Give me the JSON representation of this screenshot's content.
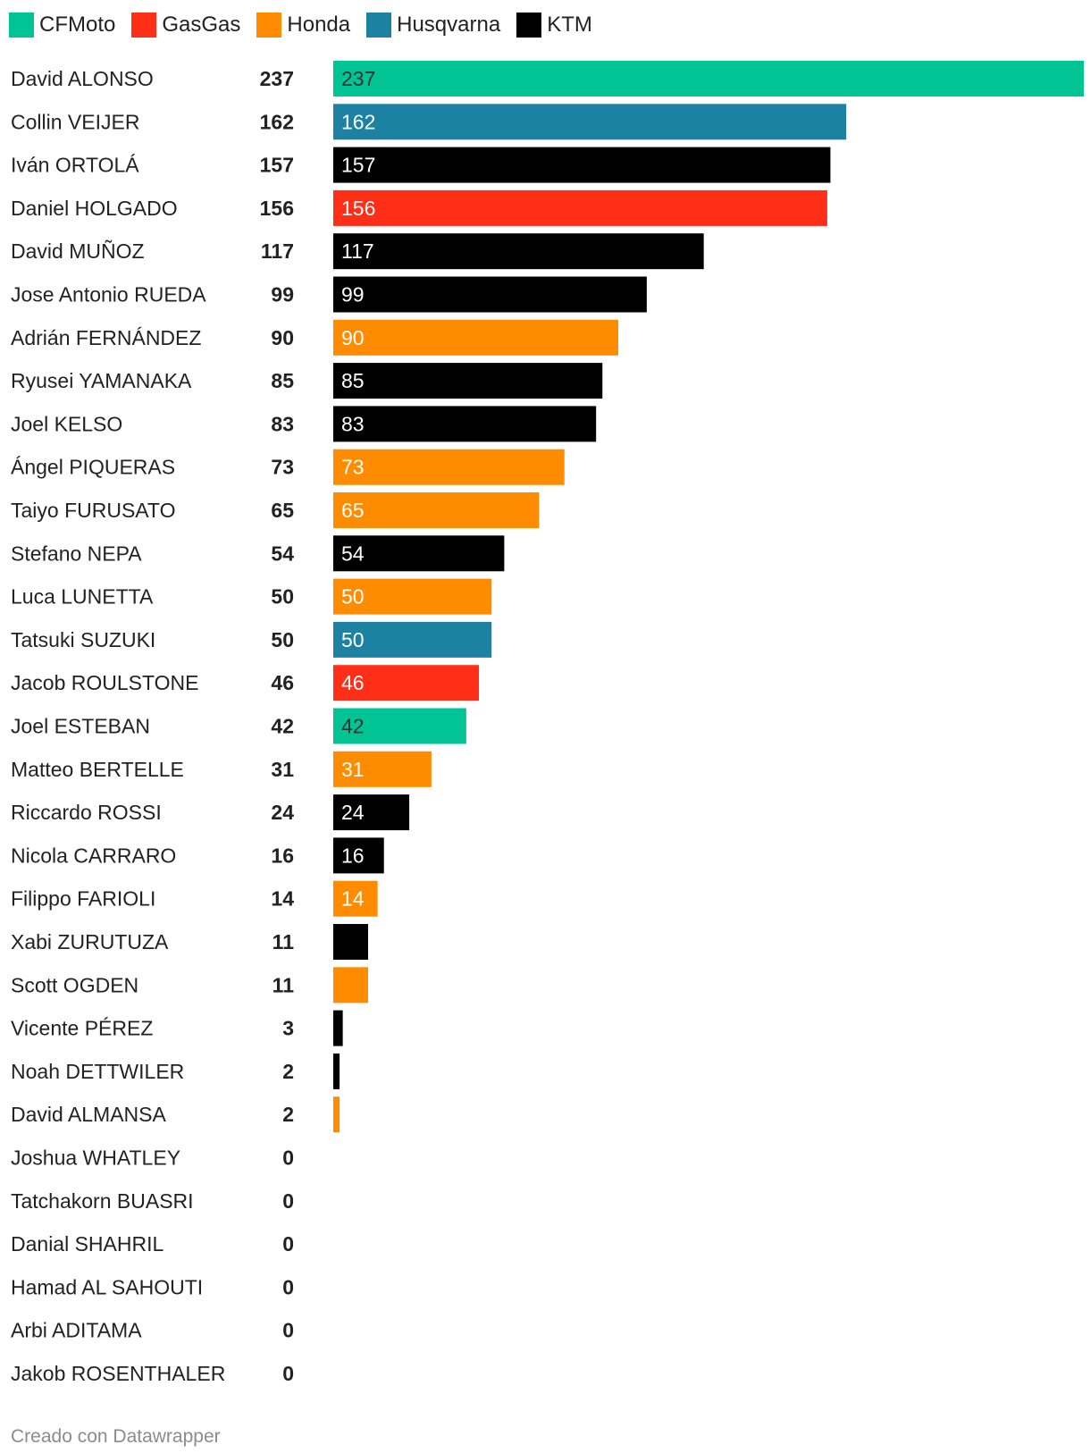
{
  "legend": [
    {
      "label": "CFMoto",
      "color": "#00c494"
    },
    {
      "label": "GasGas",
      "color": "#ff2e17"
    },
    {
      "label": "Honda",
      "color": "#ff8c00"
    },
    {
      "label": "Husqvarna",
      "color": "#1d81a2"
    },
    {
      "label": "KTM",
      "color": "#000000"
    }
  ],
  "chart_data": {
    "type": "bar",
    "orientation": "horizontal",
    "xlim": [
      0,
      237
    ],
    "grid": false,
    "legend_position": "top-left",
    "label_min_value": 14,
    "rows": [
      {
        "name": "David ALONSO",
        "value": 237,
        "team": "CFMoto"
      },
      {
        "name": "Collin VEIJER",
        "value": 162,
        "team": "Husqvarna"
      },
      {
        "name": "Iván ORTOLÁ",
        "value": 157,
        "team": "KTM"
      },
      {
        "name": "Daniel HOLGADO",
        "value": 156,
        "team": "GasGas"
      },
      {
        "name": "David MUÑOZ",
        "value": 117,
        "team": "KTM"
      },
      {
        "name": "Jose Antonio RUEDA",
        "value": 99,
        "team": "KTM"
      },
      {
        "name": "Adrián FERNÁNDEZ",
        "value": 90,
        "team": "Honda"
      },
      {
        "name": "Ryusei YAMANAKA",
        "value": 85,
        "team": "KTM"
      },
      {
        "name": "Joel KELSO",
        "value": 83,
        "team": "KTM"
      },
      {
        "name": "Ángel PIQUERAS",
        "value": 73,
        "team": "Honda"
      },
      {
        "name": "Taiyo FURUSATO",
        "value": 65,
        "team": "Honda"
      },
      {
        "name": "Stefano NEPA",
        "value": 54,
        "team": "KTM"
      },
      {
        "name": "Luca LUNETTA",
        "value": 50,
        "team": "Honda"
      },
      {
        "name": "Tatsuki SUZUKI",
        "value": 50,
        "team": "Husqvarna"
      },
      {
        "name": "Jacob ROULSTONE",
        "value": 46,
        "team": "GasGas"
      },
      {
        "name": "Joel ESTEBAN",
        "value": 42,
        "team": "CFMoto"
      },
      {
        "name": "Matteo BERTELLE",
        "value": 31,
        "team": "Honda"
      },
      {
        "name": "Riccardo ROSSI",
        "value": 24,
        "team": "KTM"
      },
      {
        "name": "Nicola CARRARO",
        "value": 16,
        "team": "KTM"
      },
      {
        "name": "Filippo FARIOLI",
        "value": 14,
        "team": "Honda"
      },
      {
        "name": "Xabi ZURUTUZA",
        "value": 11,
        "team": "KTM"
      },
      {
        "name": "Scott OGDEN",
        "value": 11,
        "team": "Honda"
      },
      {
        "name": "Vicente PÉREZ",
        "value": 3,
        "team": "KTM"
      },
      {
        "name": "Noah DETTWILER",
        "value": 2,
        "team": "KTM"
      },
      {
        "name": "David ALMANSA",
        "value": 2,
        "team": "Honda"
      },
      {
        "name": "Joshua WHATLEY",
        "value": 0,
        "team": ""
      },
      {
        "name": "Tatchakorn BUASRI",
        "value": 0,
        "team": ""
      },
      {
        "name": "Danial SHAHRIL",
        "value": 0,
        "team": ""
      },
      {
        "name": "Hamad AL SAHOUTI",
        "value": 0,
        "team": ""
      },
      {
        "name": "Arbi ADITAMA",
        "value": 0,
        "team": ""
      },
      {
        "name": "Jakob ROSENTHALER",
        "value": 0,
        "team": ""
      }
    ]
  },
  "footer": {
    "credit": "Creado con Datawrapper"
  }
}
